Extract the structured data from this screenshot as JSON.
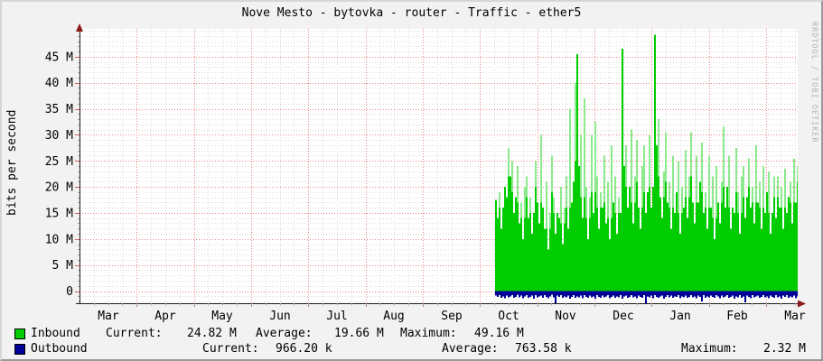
{
  "header": {
    "title": "Nove Mesto - bytovka - router - Traffic - ether5",
    "watermark": "RRDTOOL / TOBI OETIKER"
  },
  "colors": {
    "inbound": "#00cc00",
    "inbound_light": "#8ce98c",
    "outbound": "#000099",
    "grid_major": "#f08080",
    "grid_minor": "#dcdcdc",
    "axis": "#1a1a1a",
    "arrow": "#8b1a1a",
    "tick_major": "#cc6666",
    "tick_minor": "#aaaaaa",
    "canvas": "#ffffff",
    "background": "#f2f2f2"
  },
  "legend": {
    "inbound": {
      "name": "Inbound",
      "current_label": "Current:",
      "current": "24.82 M",
      "average_label": "Average:",
      "average": "19.66 M",
      "maximum_label": "Maximum:",
      "maximum": "49.16 M"
    },
    "outbound": {
      "name": "Outbound",
      "current_label": "Current:",
      "current": "966.20 k",
      "average_label": "Average:",
      "average": "763.58 k",
      "maximum_label": "Maximum:",
      "maximum": "2.32 M"
    }
  },
  "chart_data": {
    "type": "area",
    "title": "Nove Mesto - bytovka - router - Traffic - ether5",
    "ylabel": "bits per second",
    "xlabel": "",
    "x_tick_labels": [
      "Mar",
      "Apr",
      "May",
      "Jun",
      "Jul",
      "Aug",
      "Sep",
      "Oct",
      "Nov",
      "Dec",
      "Jan",
      "Feb",
      "Mar"
    ],
    "y_ticks_mbps": [
      0,
      5,
      10,
      15,
      20,
      25,
      30,
      35,
      40,
      45
    ],
    "y_tick_labels": [
      "0",
      "5 M",
      "10 M",
      "15 M",
      "20 M",
      "25 M",
      "30 M",
      "35 M",
      "40 M",
      "45 M"
    ],
    "ylim_mbps": [
      -2.4,
      50.4
    ],
    "grid": true,
    "legend_position": "bottom",
    "data_start_fraction": 0.578,
    "sample_unit": "Mbps",
    "series": [
      {
        "name": "Inbound",
        "color": "#00cc00",
        "style": "area",
        "stats": {
          "current": "24.82 M",
          "average": "19.66 M",
          "maximum": "49.16 M"
        },
        "values": [
          17.5,
          14,
          19,
          12,
          16,
          21,
          18,
          27.5,
          22,
          25,
          15,
          18,
          24,
          13,
          17,
          10,
          20,
          22,
          14,
          18,
          11,
          16,
          25,
          19,
          13,
          30,
          16,
          12,
          21,
          8,
          15,
          26,
          18,
          11,
          17,
          14,
          20,
          9,
          16,
          22,
          12,
          35,
          17,
          21,
          40,
          45.5,
          24,
          30,
          14,
          37,
          20,
          10,
          18,
          30,
          15,
          32.5,
          22,
          12,
          19,
          16,
          26,
          13,
          21,
          10,
          28,
          17,
          22,
          11,
          18,
          15,
          46.5,
          24,
          28,
          16,
          20,
          31,
          13,
          22,
          29,
          17,
          12,
          24,
          28,
          15,
          19,
          30,
          16,
          22,
          49.2,
          28,
          33,
          18,
          14,
          23,
          30.5,
          17,
          21,
          12,
          26,
          15,
          19,
          25,
          11,
          20,
          16,
          27,
          14,
          22,
          30.5,
          18,
          13,
          26,
          17,
          21,
          28.5,
          15,
          19,
          12,
          26,
          16,
          22,
          10,
          24,
          17,
          13,
          21,
          31.5,
          16,
          20,
          26,
          12,
          18,
          15,
          27.5,
          19,
          11,
          22,
          24,
          14,
          18,
          25.5,
          16,
          20,
          13,
          28,
          17,
          21,
          12,
          24,
          15,
          19,
          23,
          11,
          17,
          22,
          14,
          22,
          16,
          20,
          12,
          23.5,
          15,
          18,
          21,
          13,
          25.5,
          17,
          24
        ]
      },
      {
        "name": "Outbound",
        "color": "#000099",
        "style": "area",
        "mirrored_below_zero": true,
        "stats": {
          "current": "966.20 k",
          "average": "763.58 k",
          "maximum": "2.32 M"
        },
        "values": [
          0.9,
          1.1,
          0.8,
          1.3,
          1.0,
          1.4,
          0.9,
          1.2,
          1.0,
          0.8,
          1.3,
          1.1,
          0.7,
          1.2,
          0.9,
          1.4,
          1.0,
          0.8,
          1.3,
          1.1,
          0.9,
          1.5,
          0.8,
          1.2,
          1.0,
          0.9,
          1.3,
          0.8,
          1.1,
          1.4,
          1.0,
          0.7,
          1.2,
          2.3,
          0.9,
          1.1,
          0.8,
          1.3,
          1.0,
          1.2,
          0.9,
          1.5,
          1.1,
          0.8,
          1.3,
          1.0,
          1.2,
          0.9,
          1.4,
          0.8,
          1.1,
          1.3,
          0.9,
          1.2,
          1.0,
          1.5,
          0.8,
          1.1,
          1.3,
          0.9,
          1.2,
          1.0,
          0.8,
          1.4,
          1.1,
          0.9,
          1.3,
          1.0,
          1.2,
          0.8,
          1.5,
          1.0,
          0.9,
          1.3,
          1.1,
          0.8,
          1.2,
          1.0,
          1.4,
          0.9,
          1.1,
          1.3,
          0.8,
          2.3,
          1.0,
          1.2,
          0.9,
          1.4,
          0.8,
          1.1,
          1.3,
          1.0,
          0.9,
          1.5,
          1.1,
          0.8,
          1.2,
          0.9,
          1.3,
          1.0,
          1.1,
          0.8,
          1.4,
          1.0,
          1.2,
          0.9,
          1.3,
          1.1,
          0.8,
          1.2,
          1.0,
          1.4,
          0.9,
          1.1,
          2.0,
          0.8,
          1.3,
          1.0,
          1.2,
          0.9,
          1.1,
          1.3,
          0.8,
          1.0,
          1.4,
          0.9,
          1.2,
          1.0,
          0.8,
          1.3,
          1.1,
          0.9,
          1.5,
          1.0,
          1.2,
          0.8,
          1.3,
          1.0,
          2.2,
          0.9,
          1.1,
          1.4,
          0.8,
          1.2,
          1.0,
          0.9,
          1.3,
          1.1,
          0.8,
          1.2,
          1.0,
          1.4,
          0.9,
          1.1,
          1.3,
          0.8,
          1.2,
          1.0,
          1.5,
          0.9,
          1.1,
          0.8,
          1.3,
          1.0,
          1.2,
          0.9,
          1.4,
          1.0
        ]
      }
    ]
  }
}
